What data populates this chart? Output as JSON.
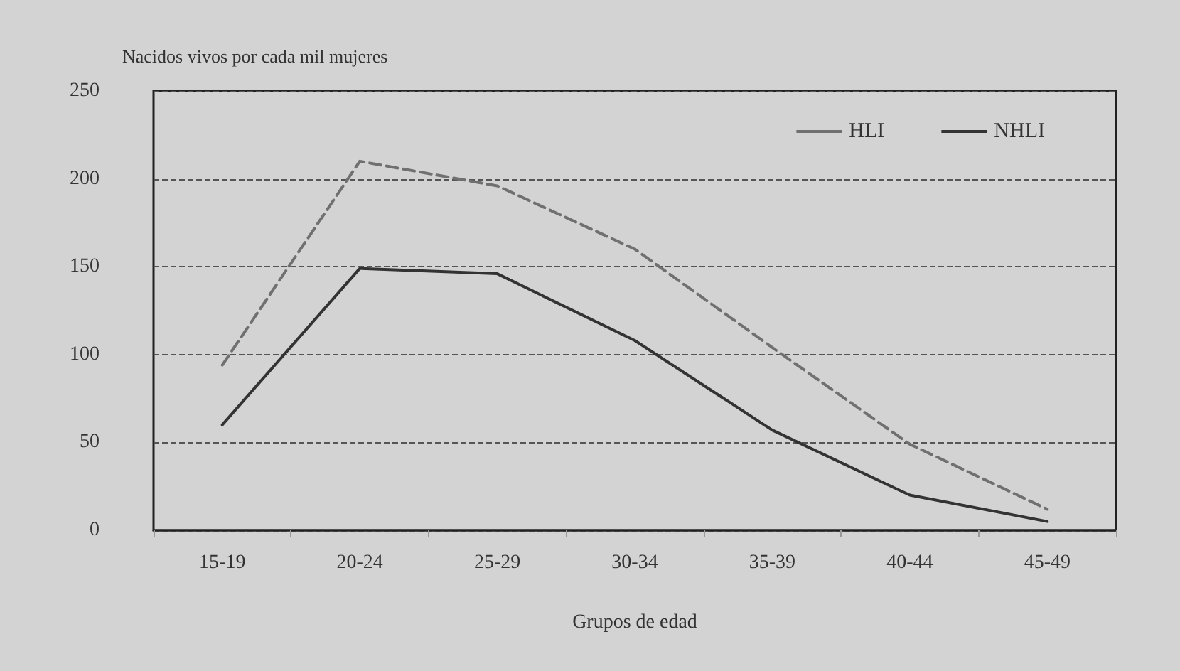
{
  "chart_data": {
    "type": "line",
    "ylabel": "Nacidos vivos por cada mil mujeres",
    "xlabel": "Grupos de edad",
    "categories": [
      "15-19",
      "20-24",
      "25-29",
      "30-34",
      "35-39",
      "40-44",
      "45-49"
    ],
    "series": [
      {
        "name": "HLI",
        "color": "#707070",
        "line_style": "dashed",
        "values": [
          94,
          210,
          196,
          160,
          104,
          49,
          12
        ]
      },
      {
        "name": "NHLI",
        "color": "#333333",
        "line_style": "solid",
        "values": [
          60,
          149,
          146,
          108,
          57,
          20,
          5
        ]
      }
    ],
    "ylim": [
      0,
      250
    ],
    "yticks": [
      0,
      50,
      100,
      150,
      200,
      250
    ],
    "grid": "y",
    "legend": "top right",
    "marker": "none"
  }
}
